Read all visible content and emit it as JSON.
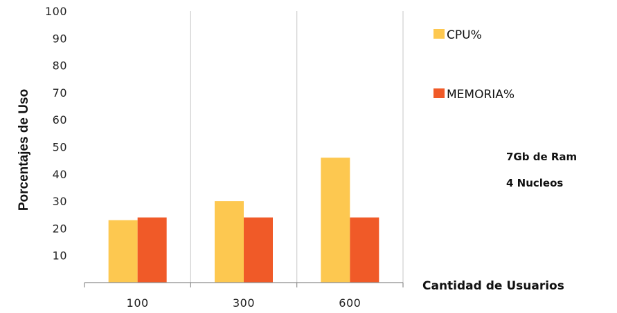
{
  "chart_data": {
    "type": "bar",
    "categories": [
      "100",
      "300",
      "600"
    ],
    "series": [
      {
        "name": "CPU%",
        "values": [
          23,
          30,
          46
        ],
        "color": "#FDC850"
      },
      {
        "name": "MEMORIA%",
        "values": [
          24,
          24,
          24
        ],
        "color": "#F05A28"
      }
    ],
    "ylabel": "Porcentajes de Uso",
    "xlabel": "Cantidad de Usuarios",
    "ylim": [
      0,
      100
    ],
    "yticks": [
      10,
      20,
      30,
      40,
      50,
      60,
      70,
      80,
      90,
      100
    ],
    "grid": "vertical-category-separators",
    "legend_position": "right",
    "annotations": [
      "7Gb de Ram",
      "4 Nucleos"
    ]
  }
}
